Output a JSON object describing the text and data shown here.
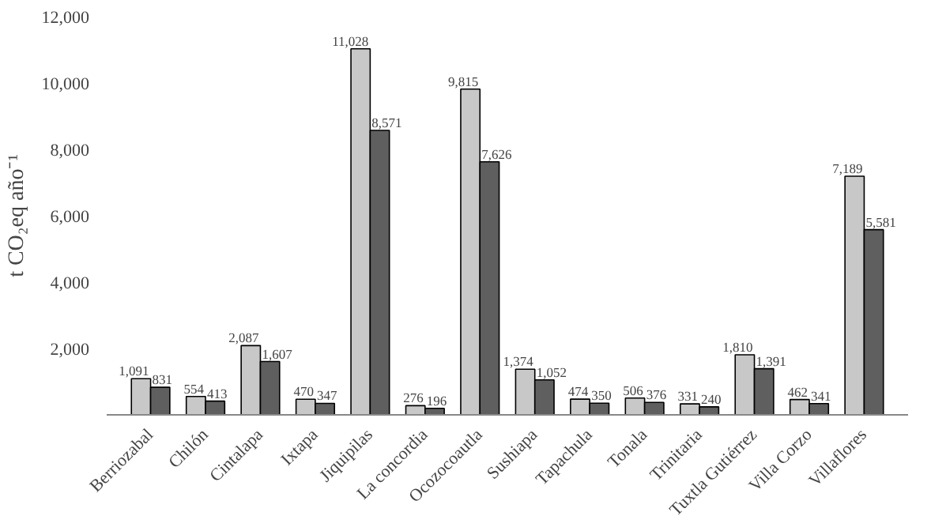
{
  "chart_data": {
    "type": "bar",
    "ylabel": "t CO₂eq año⁻¹",
    "categories": [
      "Berriozabal",
      "Chilón",
      "Cintalapa",
      "Ixtapa",
      "Jiquipilas",
      "La concordia",
      "Ocozocoautla",
      "Sushiapa",
      "Tapachula",
      "Tonala",
      "Trinitaria",
      "Tuxtla Gutiérrez",
      "Villa Corzo",
      "Villaflores"
    ],
    "series": [
      {
        "color": "#c8c8c8",
        "values": [
          1091,
          554,
          2087,
          470,
          11028,
          276,
          9815,
          1374,
          474,
          506,
          331,
          1810,
          462,
          7189
        ],
        "value_labels": [
          "1,091",
          "554",
          "2,087",
          "470",
          "11,028",
          "276",
          "9,815",
          "1,374",
          "474",
          "506",
          "331",
          "1,810",
          "462",
          "7,189"
        ]
      },
      {
        "color": "#5f5f5f",
        "values": [
          831,
          413,
          1607,
          347,
          8571,
          196,
          7626,
          1052,
          350,
          376,
          240,
          1391,
          341,
          5581
        ],
        "value_labels": [
          "831",
          "413",
          "1,607",
          "347",
          "8,571",
          "196",
          "7,626",
          "1,052",
          "350",
          "376",
          "240",
          "1,391",
          "341",
          "5,581"
        ]
      }
    ],
    "ylim": [
      0,
      12000
    ],
    "yticks": [
      {
        "value": 2000,
        "label": "2,000"
      },
      {
        "value": 4000,
        "label": "4,000"
      },
      {
        "value": 6000,
        "label": "6,000"
      },
      {
        "value": 8000,
        "label": "8,000"
      },
      {
        "value": 10000,
        "label": "10,000"
      },
      {
        "value": 12000,
        "label": "12,000"
      }
    ],
    "grid": false
  }
}
